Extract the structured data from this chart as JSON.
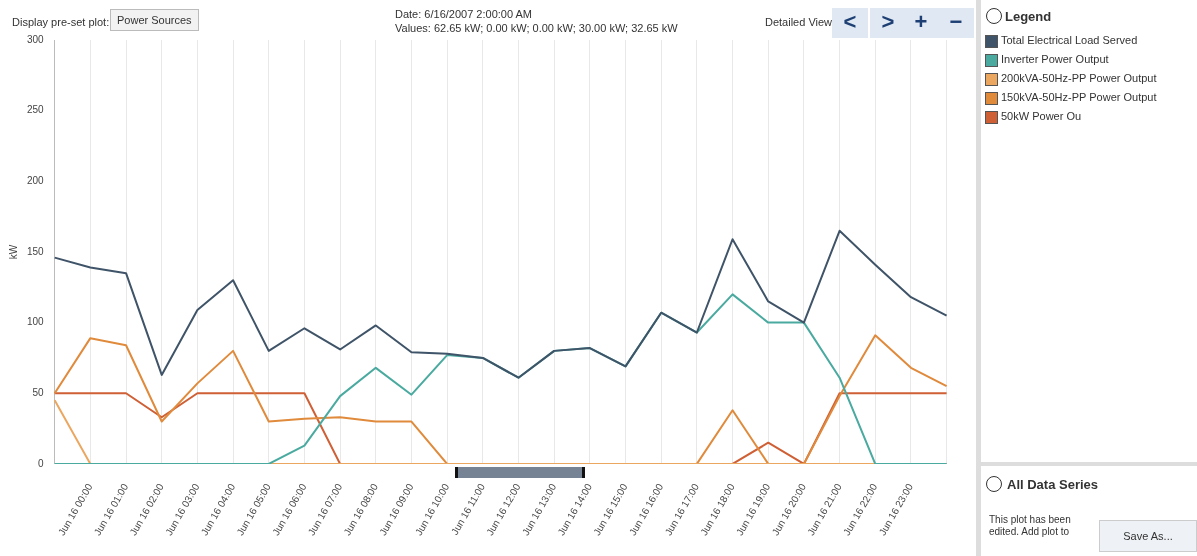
{
  "chart_data": {
    "type": "line",
    "ylabel": "kW",
    "legend_title": "Legend",
    "categories": [
      null,
      "Jun 16 00:00",
      "Jun 16 01:00",
      "Jun 16 02:00",
      "Jun 16 03:00",
      "Jun 16 04:00",
      "Jun 16 05:00",
      "Jun 16 06:00",
      "Jun 16 07:00",
      "Jun 16 08:00",
      "Jun 16 09:00",
      "Jun 16 10:00",
      "Jun 16 11:00",
      "Jun 16 12:00",
      "Jun 16 13:00",
      "Jun 16 14:00",
      "Jun 16 15:00",
      "Jun 16 16:00",
      "Jun 16 17:00",
      "Jun 16 18:00",
      "Jun 16 19:00",
      "Jun 16 20:00",
      "Jun 16 21:00",
      "Jun 16 22:00",
      "Jun 16 23:00",
      null
    ],
    "ylim": [
      0,
      300
    ],
    "yticks": [
      0,
      50,
      100,
      150,
      200,
      250,
      300
    ],
    "grid": "x",
    "legend": "right",
    "line_style": "solid",
    "series": [
      {
        "name": "Total Electrical Load Served",
        "color": "#3f5468",
        "values": [
          146,
          139,
          135,
          63,
          109,
          130,
          80,
          96,
          81,
          98,
          79,
          78,
          75,
          61,
          80,
          82,
          69,
          107,
          93,
          159,
          115,
          100,
          165,
          141,
          118,
          105
        ]
      },
      {
        "name": "Inverter Power Output",
        "color": "#4aaaa0",
        "values": [
          0,
          0,
          0,
          0,
          0,
          0,
          0,
          13,
          48,
          68,
          49,
          77,
          75,
          61,
          80,
          82,
          69,
          107,
          93,
          120,
          100,
          100,
          61,
          0,
          0,
          0
        ]
      },
      {
        "name": "200kVA-50Hz-PP Power Output",
        "color": "#eba760",
        "values": [
          45,
          0,
          0,
          0,
          0,
          0,
          0,
          0,
          0,
          0,
          0,
          0,
          0,
          0,
          0,
          0,
          0,
          0,
          0,
          0,
          0,
          0,
          0,
          0,
          0,
          0
        ]
      },
      {
        "name": "150kVA-50Hz-PP Power Output",
        "color": "#e08a3c",
        "values": [
          50,
          89,
          84,
          30,
          57,
          80,
          30,
          32,
          33,
          30,
          30,
          0,
          0,
          0,
          0,
          0,
          0,
          0,
          0,
          38,
          0,
          0,
          48,
          91,
          68,
          55
        ]
      },
      {
        "name": "50kW Power Ou",
        "color": "#cf5f35",
        "values": [
          50,
          50,
          50,
          33,
          50,
          50,
          50,
          50,
          0,
          0,
          0,
          0,
          0,
          0,
          0,
          0,
          0,
          0,
          0,
          0,
          15,
          0,
          50,
          50,
          50,
          50
        ]
      }
    ],
    "annotations": [
      "Display pre-set plot:",
      "Power Sources",
      "Date:  6/16/2007 2:00:00 AM",
      "Values:  62.65 kW; 0.00 kW; 0.00 kW; 30.00 kW; 32.65 kW",
      "Detailed View",
      "<",
      ">",
      "+",
      "−",
      "All Data Series",
      "This plot has been edited. Add plot to",
      "Save As..."
    ]
  }
}
